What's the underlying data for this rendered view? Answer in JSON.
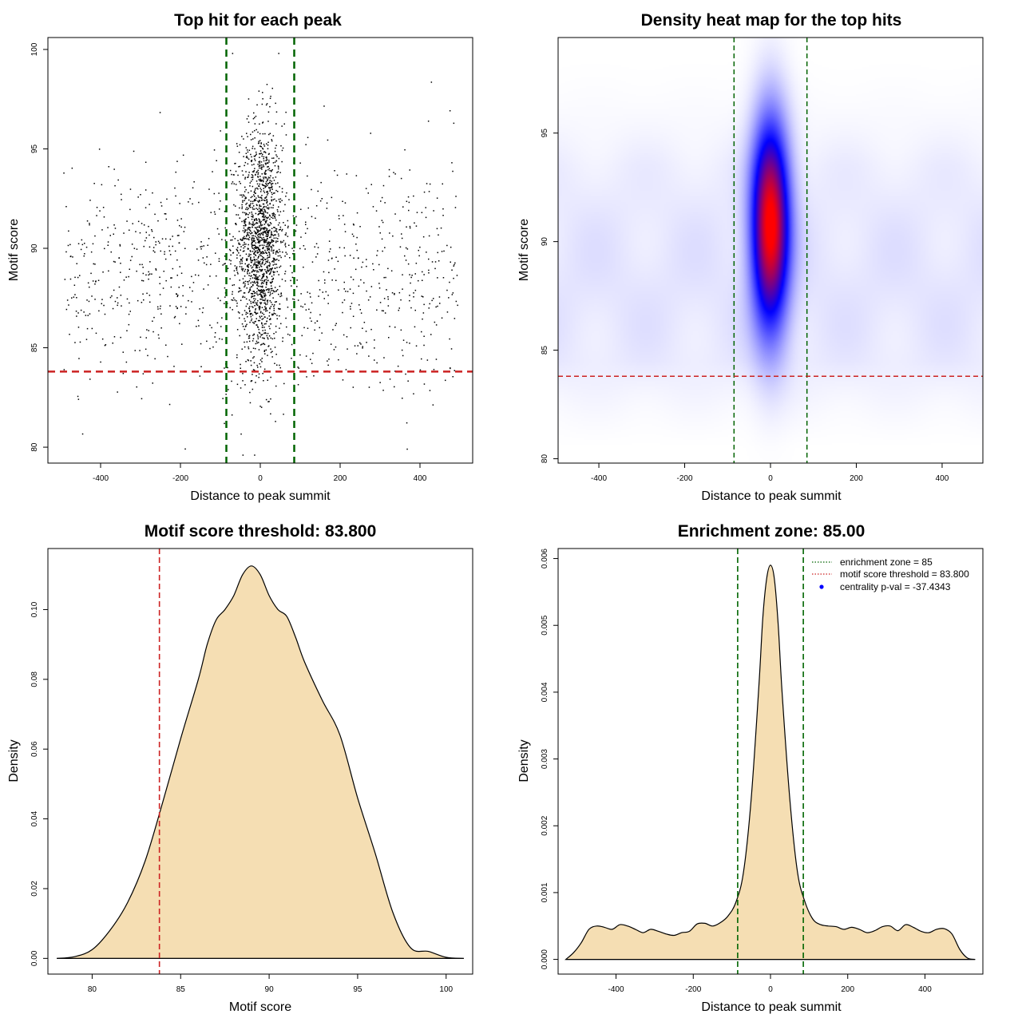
{
  "chart_data": [
    {
      "type": "scatter",
      "title": "Top hit for each peak",
      "xlabel": "Distance to peak summit",
      "ylabel": "Motif score",
      "xlim": [
        -532,
        532
      ],
      "ylim": [
        79.2,
        100.6
      ],
      "xticks": [
        -400,
        -200,
        0,
        200,
        400
      ],
      "yticks": [
        80,
        85,
        90,
        95,
        100
      ],
      "xtick_labels": [
        "-400",
        "-200",
        "0",
        "200",
        "400"
      ],
      "ytick_labels": [
        "80",
        "85",
        "90",
        "95",
        "100"
      ],
      "vlines": [
        -85,
        85
      ],
      "hline": 83.8,
      "line_colors": {
        "vertical": "#006400",
        "horizontal": "#cc2222"
      },
      "point_color": "#000000",
      "distribution": {
        "n_center": 1500,
        "center_mean_x": 0,
        "center_sd_x": 28,
        "center_mean_y": 90.3,
        "center_sd_y": 3.0,
        "n_background": 1000,
        "background_x_range": [
          -495,
          495
        ],
        "background_mean_y": 88.6,
        "background_sd_y": 3.0
      }
    },
    {
      "type": "heatmap",
      "title": "Density heat map for the top hits",
      "xlabel": "Distance to peak summit",
      "ylabel": "Motif score",
      "xlim": [
        -495,
        495
      ],
      "ylim": [
        79.8,
        99.4
      ],
      "xticks": [
        -400,
        -200,
        0,
        200,
        400
      ],
      "yticks": [
        80,
        85,
        90,
        95
      ],
      "xtick_labels": [
        "-400",
        "-200",
        "0",
        "200",
        "400"
      ],
      "ytick_labels": [
        "80",
        "85",
        "90",
        "95"
      ],
      "vlines": [
        -85,
        85
      ],
      "hline": 83.8,
      "colors": [
        "#ffffff",
        "#0000ff",
        "#ff0000"
      ],
      "hotspot": {
        "x": 0,
        "y": 90.8,
        "sd_x": 30,
        "sd_y": 3.2
      },
      "background_level": 0.07
    },
    {
      "type": "area",
      "title": "Motif score threshold: 83.800",
      "xlabel": "Motif score",
      "ylabel": "Density",
      "xlim": [
        77.5,
        101.5
      ],
      "ylim": [
        -0.0045,
        0.1175
      ],
      "xticks": [
        80,
        85,
        90,
        95,
        100
      ],
      "yticks": [
        0.0,
        0.02,
        0.04,
        0.06,
        0.08,
        0.1
      ],
      "xtick_labels": [
        "80",
        "85",
        "90",
        "95",
        "100"
      ],
      "ytick_labels": [
        "0.00",
        "0.02",
        "0.04",
        "0.06",
        "0.08",
        "0.10"
      ],
      "x": [
        78.0,
        79.0,
        80.0,
        81.0,
        82.0,
        83.0,
        84.0,
        85.0,
        86.0,
        86.5,
        87.0,
        87.5,
        88.0,
        88.5,
        89.0,
        89.5,
        90.0,
        90.5,
        91.0,
        91.5,
        92.0,
        93.0,
        94.0,
        95.0,
        96.0,
        97.0,
        98.0,
        99.0,
        100.0,
        101.0
      ],
      "values": [
        0.0,
        0.0005,
        0.0025,
        0.008,
        0.016,
        0.028,
        0.045,
        0.063,
        0.08,
        0.09,
        0.097,
        0.1,
        0.104,
        0.11,
        0.1125,
        0.11,
        0.104,
        0.1,
        0.098,
        0.092,
        0.085,
        0.074,
        0.064,
        0.046,
        0.03,
        0.013,
        0.003,
        0.002,
        0.0003,
        0.0
      ],
      "vline": 83.8,
      "fill": "#f5deb3",
      "line_color": "#cc2222"
    },
    {
      "type": "area",
      "title": "Enrichment zone: 85.00",
      "xlabel": "Distance to peak summit",
      "ylabel": "Density",
      "xlim": [
        -550,
        550
      ],
      "ylim": [
        -0.00022,
        0.00615
      ],
      "xticks": [
        -400,
        -200,
        0,
        200,
        400
      ],
      "yticks": [
        0.0,
        0.001,
        0.002,
        0.003,
        0.004,
        0.005,
        0.006
      ],
      "xtick_labels": [
        "-400",
        "-200",
        "0",
        "200",
        "400"
      ],
      "ytick_labels": [
        "0.000",
        "0.001",
        "0.002",
        "0.003",
        "0.004",
        "0.005",
        "0.006"
      ],
      "x": [
        -530,
        -510,
        -490,
        -470,
        -450,
        -430,
        -410,
        -390,
        -370,
        -350,
        -330,
        -310,
        -290,
        -270,
        -250,
        -230,
        -210,
        -190,
        -170,
        -150,
        -130,
        -110,
        -90,
        -70,
        -50,
        -30,
        -20,
        -10,
        0,
        10,
        20,
        30,
        50,
        70,
        90,
        110,
        130,
        150,
        170,
        190,
        210,
        230,
        250,
        270,
        290,
        310,
        330,
        350,
        370,
        390,
        410,
        430,
        450,
        470,
        490,
        510,
        530
      ],
      "values": [
        0.0,
        0.0001,
        0.00025,
        0.00045,
        0.0005,
        0.00048,
        0.00045,
        0.00052,
        0.0005,
        0.00045,
        0.0004,
        0.00045,
        0.00042,
        0.00038,
        0.00036,
        0.0004,
        0.00042,
        0.00053,
        0.00054,
        0.0005,
        0.00055,
        0.00065,
        0.00085,
        0.0013,
        0.0024,
        0.0041,
        0.0051,
        0.0057,
        0.0059,
        0.0057,
        0.005,
        0.004,
        0.0024,
        0.0013,
        0.00085,
        0.0006,
        0.00052,
        0.0005,
        0.00049,
        0.00045,
        0.00048,
        0.00045,
        0.0004,
        0.00043,
        0.00049,
        0.0005,
        0.00043,
        0.00052,
        0.00048,
        0.00042,
        0.0004,
        0.00045,
        0.00046,
        0.00038,
        0.00015,
        2e-05,
        0.0
      ],
      "vlines": [
        -85,
        85
      ],
      "fill": "#f5deb3",
      "line_color": "#006400",
      "legend": {
        "position": "top-right",
        "entries": [
          {
            "label": "enrichment zone = 85",
            "color": "#006400",
            "style": "dotted-line"
          },
          {
            "label": "motif score threshold = 83.800",
            "color": "#cc2222",
            "style": "dotted-line"
          },
          {
            "label": "centrality p-val = -37.4343",
            "color": "#0000ff",
            "style": "point"
          }
        ]
      }
    }
  ]
}
